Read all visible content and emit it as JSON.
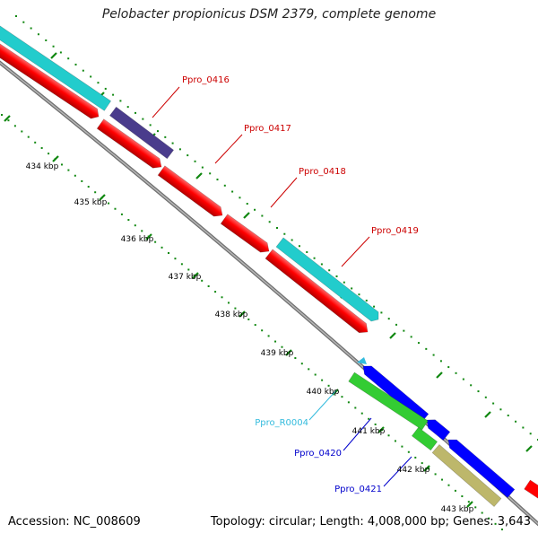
{
  "title": "Pelobacter propionicus DSM 2379, complete genome",
  "footer": {
    "accession": "Accession: NC_008609",
    "summary": "Topology: circular; Length: 4,008,000 bp; Genes: 3,643"
  },
  "scale_labels": [
    "434 kbp",
    "435 kbp",
    "436 kbp",
    "437 kbp",
    "438 kbp",
    "439 kbp",
    "440 kbp",
    "441 kbp",
    "442 kbp",
    "443 kbp"
  ],
  "features": [
    {
      "label": "Ppro_0416",
      "color": "#cc0000"
    },
    {
      "label": "Ppro_0417",
      "color": "#cc0000"
    },
    {
      "label": "Ppro_0418",
      "color": "#cc0000"
    },
    {
      "label": "Ppro_0419",
      "color": "#cc0000"
    },
    {
      "label": "Ppro_R0004",
      "color": "#33bbdd"
    },
    {
      "label": "Ppro_0420",
      "color": "#0000cc"
    },
    {
      "label": "Ppro_0421",
      "color": "#0000cc"
    }
  ],
  "colors": {
    "cds_forward": "#ff0000",
    "cds_reverse": "#0000ff",
    "trna": "#33bbdd",
    "cyan_track": "#22cccc",
    "purple_track": "#4a3c8c",
    "green_track": "#33cc33",
    "khaki_track": "#bdb76b",
    "backbone": "#888888",
    "tick_green": "#118811"
  }
}
